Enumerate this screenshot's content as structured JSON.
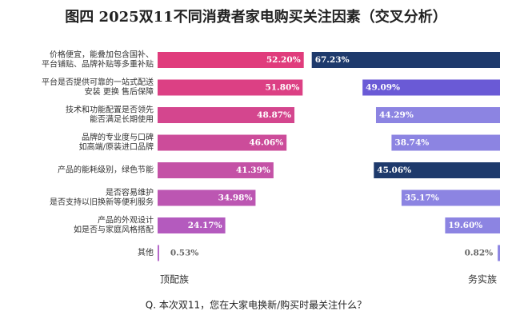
{
  "chart_data": {
    "type": "mirror-bar",
    "title": "图四 2025双11不同消费者家电购买关注因素（交叉分析）",
    "question": "Q. 本次双11，您在大家电换新/购买时最关注什么？",
    "categories": [
      [
        "价格便宜，能叠加包含国补、",
        "平台铺贴、品牌补贴等多重补贴"
      ],
      [
        "平台是否提供可靠的一站式配送",
        "安装 更换 售后保障"
      ],
      [
        "技术和功能配置是否领先",
        "能否满足长期使用"
      ],
      [
        "品牌的专业度与口碑",
        "如高端/原装进口品牌"
      ],
      [
        "产品的能耗级别，绿色节能"
      ],
      [
        "是否容易维护",
        "是否支持以旧换新等便利服务"
      ],
      [
        "产品的外观设计",
        "如是否与家庭风格搭配"
      ],
      [
        "其他"
      ]
    ],
    "xlim": [
      0,
      70
    ],
    "series": [
      {
        "name": "顶配族",
        "values": [
          52.2,
          51.8,
          48.87,
          46.06,
          41.39,
          34.98,
          24.17,
          0.53
        ],
        "value_labels": [
          "52.20%",
          "51.80%",
          "48.87%",
          "46.06%",
          "41.39%",
          "34.98%",
          "24.17%",
          "0.53%"
        ],
        "colors": [
          "#e03c7c",
          "#dc4084",
          "#d4468e",
          "#cc4c9a",
          "#c452a6",
          "#bc56b2",
          "#b45abe",
          "#b05cc6"
        ]
      },
      {
        "name": "务实族",
        "values": [
          67.23,
          49.09,
          44.29,
          38.74,
          45.06,
          35.17,
          19.6,
          0.82
        ],
        "value_labels": [
          "67.23%",
          "49.09%",
          "44.29%",
          "38.74%",
          "45.06%",
          "35.17%",
          "19.60%",
          "0.82%"
        ],
        "colors": [
          "#1e3a6c",
          "#6a5ad6",
          "#8c84e2",
          "#8c84e2",
          "#1e3a6c",
          "#8c84e2",
          "#8c84e2",
          "#8c84e2"
        ]
      }
    ]
  }
}
